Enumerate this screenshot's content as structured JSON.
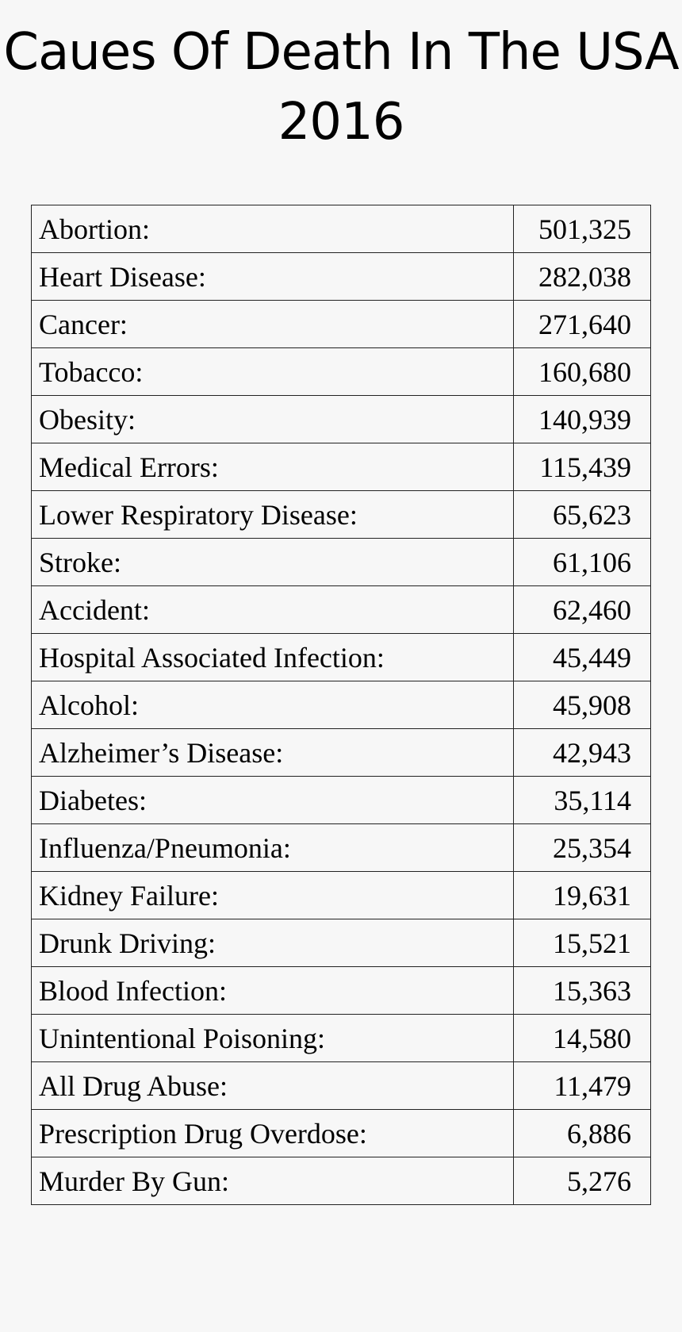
{
  "title": {
    "line1": "Caues Of Death In The USA",
    "line2": "2016"
  },
  "rows": [
    {
      "cause": "Abortion:",
      "count": "501,325"
    },
    {
      "cause": "Heart Disease:",
      "count": "282,038"
    },
    {
      "cause": "Cancer:",
      "count": "271,640"
    },
    {
      "cause": "Tobacco:",
      "count": "160,680"
    },
    {
      "cause": "Obesity:",
      "count": "140,939"
    },
    {
      "cause": "Medical Errors:",
      "count": "115,439"
    },
    {
      "cause": "Lower Respiratory Disease:",
      "count": "65,623"
    },
    {
      "cause": "Stroke:",
      "count": "61,106"
    },
    {
      "cause": "Accident:",
      "count": "62,460"
    },
    {
      "cause": "Hospital Associated Infection:",
      "count": "45,449"
    },
    {
      "cause": "Alcohol:",
      "count": "45,908"
    },
    {
      "cause": "Alzheimer’s Disease:",
      "count": "42,943"
    },
    {
      "cause": "Diabetes:",
      "count": "35,114"
    },
    {
      "cause": "Influenza/Pneumonia:",
      "count": "25,354"
    },
    {
      "cause": "Kidney Failure:",
      "count": "19,631"
    },
    {
      "cause": "Drunk Driving:",
      "count": "15,521"
    },
    {
      "cause": "Blood Infection:",
      "count": "15,363"
    },
    {
      "cause": "Unintentional Poisoning:",
      "count": "14,580"
    },
    {
      "cause": "All Drug Abuse:",
      "count": "11,479"
    },
    {
      "cause": "Prescription Drug Overdose:",
      "count": "6,886"
    },
    {
      "cause": "Murder By Gun:",
      "count": "5,276"
    }
  ]
}
